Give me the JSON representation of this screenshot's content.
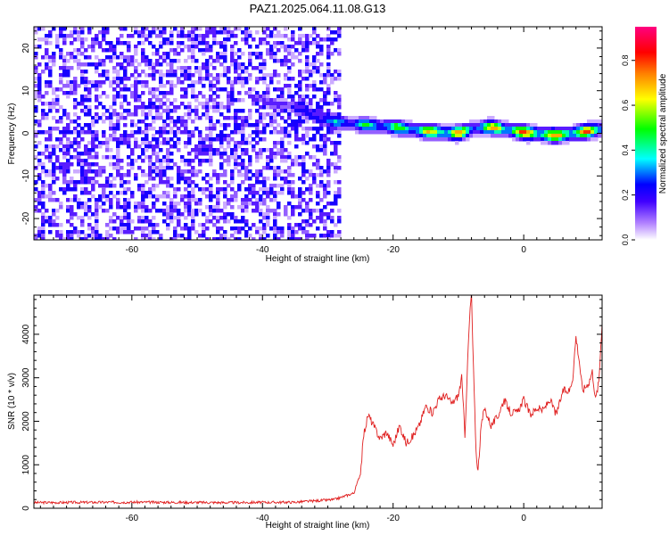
{
  "title": "PAZ1.2025.064.11.08.G13",
  "chart_data": [
    {
      "type": "heatmap",
      "xlabel": "Height of straight line (km)",
      "ylabel": "Frequency (Hz)",
      "xlim": [
        -75,
        12
      ],
      "ylim": [
        -25,
        25
      ],
      "x_ticks": [
        -60,
        -40,
        -20,
        0
      ],
      "y_ticks": [
        -20,
        -10,
        0,
        10,
        20
      ],
      "colorbar": {
        "label": "Normalized spectral amplitude",
        "range": [
          0,
          0.95
        ],
        "ticks": [
          0,
          0.2,
          0.4,
          0.6,
          0.8
        ],
        "colors": [
          "#ffffff",
          "#b080ff",
          "#4000ff",
          "#0000ff",
          "#00ffff",
          "#00ff00",
          "#ffff00",
          "#ff8000",
          "#ff0000",
          "#ff0080"
        ]
      },
      "signal_track": {
        "x": [
          -40,
          -35,
          -30,
          -25,
          -20,
          -15,
          -10,
          -8,
          -5,
          0,
          5,
          10,
          12
        ],
        "freq": [
          7.5,
          6,
          3,
          2,
          1.5,
          0.5,
          0,
          1,
          1.5,
          0.2,
          -0.5,
          0.5,
          1
        ],
        "amplitude": [
          0.15,
          0.25,
          0.4,
          0.5,
          0.6,
          0.7,
          0.85,
          0.5,
          0.75,
          0.85,
          0.8,
          0.85,
          0.6
        ]
      },
      "noise_region_x": [
        -75,
        -28
      ],
      "noise_amplitude_range": [
        0.02,
        0.3
      ]
    },
    {
      "type": "line",
      "xlabel": "Height of straight line (km)",
      "ylabel": "SNR (10 * v/v)",
      "xlim": [
        -75,
        12
      ],
      "ylim": [
        0,
        4900
      ],
      "x_ticks": [
        -60,
        -40,
        -20,
        0
      ],
      "y_ticks": [
        0,
        1000,
        2000,
        3000,
        4000
      ],
      "series": [
        {
          "color": "#e02020",
          "x": [
            -75,
            -60,
            -45,
            -35,
            -29,
            -26,
            -25,
            -24.5,
            -23.8,
            -23,
            -22,
            -21,
            -20,
            -19,
            -18,
            -17,
            -16,
            -15,
            -14,
            -13,
            -12,
            -11,
            -10,
            -9.5,
            -9,
            -8.5,
            -8.2,
            -8,
            -7.7,
            -7.3,
            -7,
            -6.5,
            -6,
            -5,
            -4,
            -3,
            -2,
            -1,
            0,
            1,
            2,
            3,
            4,
            5,
            6,
            7,
            7.5,
            8,
            8.5,
            9,
            10,
            10.5,
            11,
            11.5,
            12
          ],
          "y": [
            130,
            140,
            130,
            140,
            200,
            350,
            800,
            1700,
            2150,
            1900,
            1600,
            1750,
            1450,
            1900,
            1500,
            1650,
            1900,
            2350,
            2200,
            2500,
            2600,
            2400,
            2600,
            3000,
            1700,
            3700,
            4600,
            4900,
            3200,
            1300,
            850,
            1900,
            2300,
            1900,
            2100,
            2500,
            2200,
            2200,
            2500,
            2150,
            2300,
            2250,
            2500,
            2150,
            2700,
            2700,
            3000,
            3950,
            3400,
            2700,
            2900,
            3150,
            2500,
            2900,
            4300
          ]
        }
      ]
    }
  ]
}
